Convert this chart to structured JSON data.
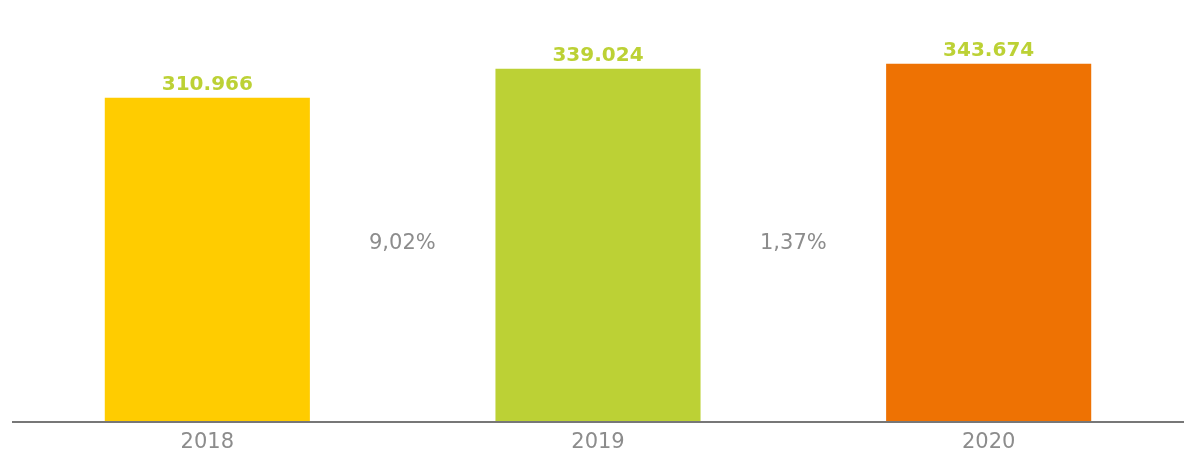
{
  "chart_data": {
    "type": "bar",
    "categories": [
      "2018",
      "2019",
      "2020"
    ],
    "values": [
      310966,
      339024,
      343674
    ],
    "value_labels": [
      "310.966",
      "339.024",
      "343.674"
    ],
    "colors": [
      "#ffcc00",
      "#bcd135",
      "#ee7203"
    ],
    "annotations": [
      "9,02%",
      "1,37%"
    ]
  }
}
